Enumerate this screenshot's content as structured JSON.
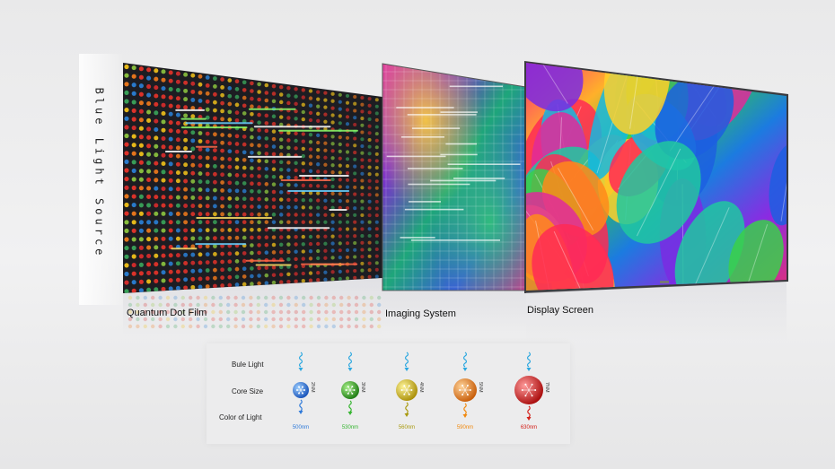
{
  "vertical_label": "Blue Light Source",
  "stages": [
    {
      "label": "Quantum Dot Film"
    },
    {
      "label": "Imaging System"
    },
    {
      "label": "Display Screen"
    }
  ],
  "legend": {
    "row_labels": [
      "Bule Light",
      "Core  Size",
      "Color of Light"
    ],
    "dots": [
      {
        "size": "2NM",
        "wavelength": "500nm",
        "color": "#1f6fd6"
      },
      {
        "size": "3NM",
        "wavelength": "530nm",
        "color": "#2e9e2c"
      },
      {
        "size": "4NM",
        "wavelength": "560nm",
        "color": "#c9b514"
      },
      {
        "size": "5NM",
        "wavelength": "590nm",
        "color": "#e58a12"
      },
      {
        "size": "7NM",
        "wavelength": "630nm",
        "color": "#d61c1c"
      }
    ]
  },
  "colors": {
    "wave_blue": "#2aa7e0",
    "wavelength_text": [
      "#2f7ad9",
      "#36b531",
      "#a99a10",
      "#f08a10",
      "#d4201a"
    ]
  }
}
